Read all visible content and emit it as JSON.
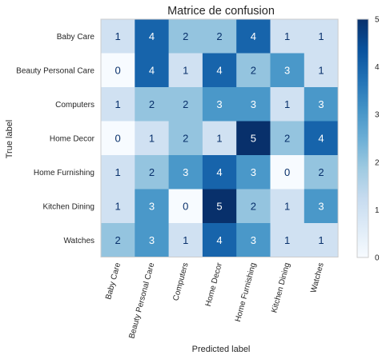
{
  "chart_data": {
    "type": "heatmap",
    "title": "Matrice de confusion",
    "xlabel": "Predicted label",
    "ylabel": "True label",
    "row_labels": [
      "Baby Care",
      "Beauty Personal Care",
      "Computers",
      "Home Decor",
      "Home Furnishing",
      "Kitchen Dining",
      "Watches"
    ],
    "col_labels": [
      "Baby Care",
      "Beauty Personal Care",
      "Computers",
      "Home Decor",
      "Home Furnishing",
      "Kitchen Dining",
      "Watches"
    ],
    "values": [
      [
        1,
        4,
        2,
        2,
        4,
        1,
        1
      ],
      [
        0,
        4,
        1,
        4,
        2,
        3,
        1
      ],
      [
        1,
        2,
        2,
        3,
        3,
        1,
        3
      ],
      [
        0,
        1,
        2,
        1,
        5,
        2,
        4
      ],
      [
        1,
        2,
        3,
        4,
        3,
        0,
        2
      ],
      [
        1,
        3,
        0,
        5,
        2,
        1,
        3
      ],
      [
        2,
        3,
        1,
        4,
        3,
        1,
        1
      ]
    ],
    "vmin": 0,
    "vmax": 5,
    "colorbar_ticks": [
      0,
      1,
      2,
      3,
      4,
      5
    ],
    "colormap": "Blues",
    "colormap_stops": [
      "#f7fbff",
      "#deebf7",
      "#c6dbef",
      "#9ecae1",
      "#6baed6",
      "#4292c6",
      "#2171b5",
      "#08519c",
      "#08306b"
    ],
    "grid": false
  }
}
